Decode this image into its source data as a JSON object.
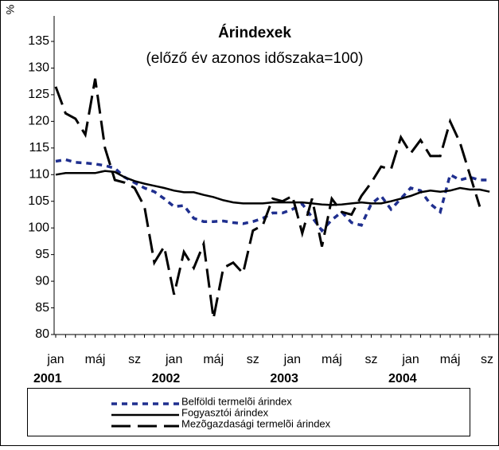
{
  "chart_data": {
    "type": "line",
    "title": "Árindexek",
    "subtitle": "(előző év azonos időszaka=100)",
    "y_label": "%",
    "categories": [
      "jan",
      null,
      null,
      null,
      "máj",
      null,
      null,
      null,
      "sz",
      null,
      null,
      null,
      "jan",
      null,
      null,
      null,
      "máj",
      null,
      null,
      null,
      "sz",
      null,
      null,
      null,
      "jan",
      null,
      null,
      null,
      "máj",
      null,
      null,
      null,
      "sz",
      null,
      null,
      null,
      "jan",
      null,
      null,
      null,
      "máj",
      null,
      null,
      null,
      "sz"
    ],
    "year_labels": [
      "2001",
      "2002",
      "2003",
      "2004"
    ],
    "series": [
      {
        "name": "Belföldi termelõi árindex",
        "color": "#1f2f8f",
        "style": "dotted",
        "values": [
          112.5,
          112.8,
          112.3,
          112.2,
          112,
          111.7,
          111.2,
          109.5,
          108.5,
          107.5,
          106.8,
          105.5,
          104,
          104.2,
          101.8,
          101.2,
          101.2,
          101.3,
          101,
          100.8,
          101.2,
          101.8,
          102.8,
          102.8,
          103.5,
          104.5,
          102,
          99.5,
          101.5,
          103,
          101,
          100.5,
          104.5,
          106,
          103.5,
          105.5,
          107.5,
          107,
          104.5,
          103,
          110,
          109,
          109.5,
          109,
          109
        ]
      },
      {
        "name": "Fogyasztói árindex",
        "color": "#000000",
        "style": "solid",
        "values": [
          110,
          110.3,
          110.3,
          110.3,
          110.3,
          110.7,
          110.5,
          109.5,
          108.8,
          108.3,
          107.9,
          107.5,
          107,
          106.7,
          106.7,
          106.2,
          105.8,
          105.2,
          104.8,
          104.6,
          104.6,
          104.6,
          104.8,
          104.8,
          104.8,
          104.8,
          104.6,
          104.4,
          104.3,
          104.4,
          104.6,
          104.8,
          104.6,
          104.6,
          105,
          105.5,
          106,
          106.7,
          107,
          106.8,
          107,
          107.5,
          107.2,
          107.2,
          106.8
        ]
      },
      {
        "name": "Mezõgazdasági termelõi árindex",
        "color": "#000000",
        "style": "dashed",
        "values": [
          126.5,
          121.5,
          120.5,
          117.5,
          128,
          115,
          109,
          108.5,
          107.5,
          104,
          93.5,
          96.5,
          87.5,
          95.5,
          92.5,
          97,
          83,
          92.5,
          93.5,
          91.5,
          99.5,
          100.5,
          105.5,
          105,
          106,
          99,
          105.5,
          96.5,
          105.5,
          103,
          102.5,
          106,
          108.5,
          111.5,
          111,
          117,
          114,
          116.5,
          113.5,
          113.5,
          120,
          116,
          110,
          104,
          null
        ]
      }
    ],
    "ylim": [
      80,
      135
    ],
    "yticks": [
      80,
      85,
      90,
      95,
      100,
      105,
      110,
      115,
      120,
      125,
      130,
      135
    ],
    "grid": false,
    "legend": "bottom"
  }
}
